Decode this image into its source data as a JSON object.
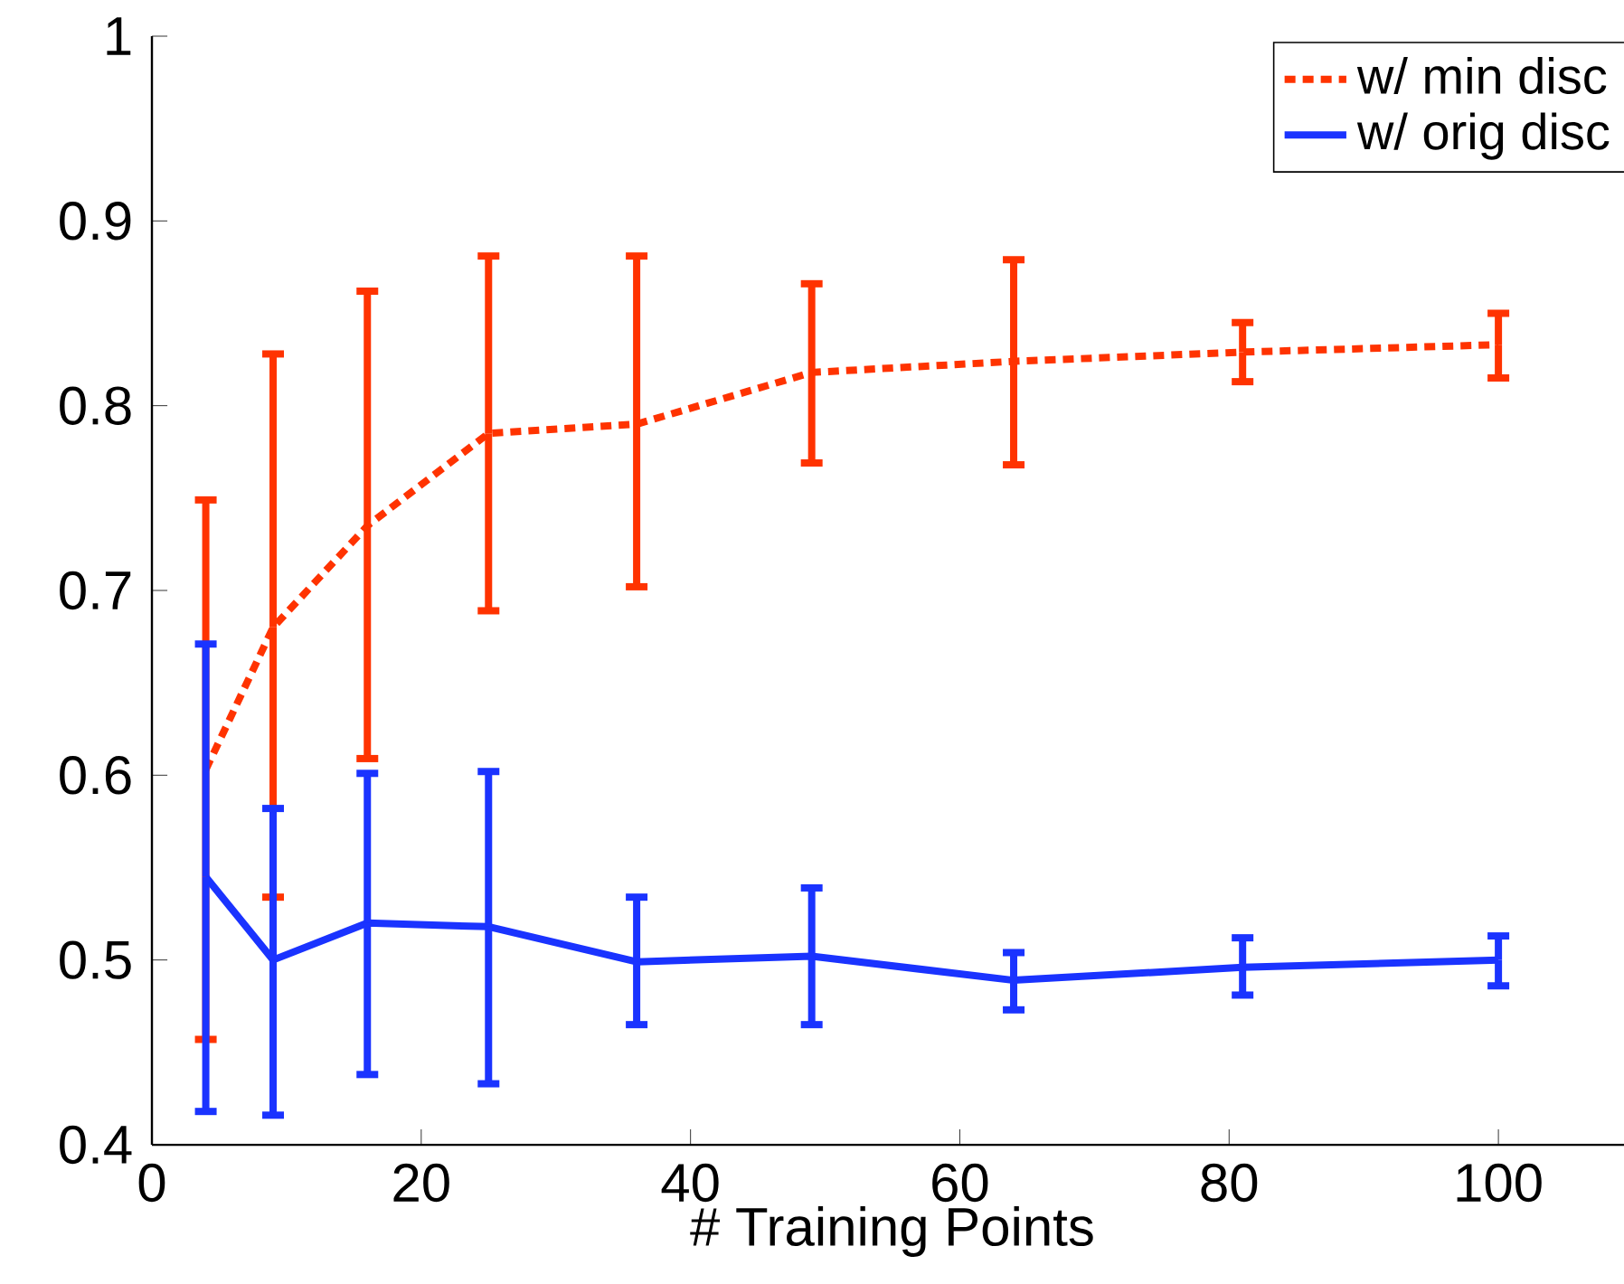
{
  "chart_data": {
    "type": "line",
    "xlabel": "# Training Points",
    "x": [
      4,
      9,
      16,
      25,
      36,
      49,
      64,
      81,
      100
    ],
    "series": [
      {
        "name": "w/ min disc",
        "color": "#ff3300",
        "line_style": "dotted",
        "values": [
          0.603,
          0.68,
          0.735,
          0.785,
          0.79,
          0.818,
          0.824,
          0.829,
          0.833
        ],
        "errors": [
          [
            0.457,
            0.749
          ],
          [
            0.534,
            0.828
          ],
          [
            0.609,
            0.862
          ],
          [
            0.689,
            0.881
          ],
          [
            0.702,
            0.881
          ],
          [
            0.769,
            0.866
          ],
          [
            0.768,
            0.879
          ],
          [
            0.813,
            0.845
          ],
          [
            0.815,
            0.85
          ]
        ]
      },
      {
        "name": "w/ orig disc",
        "color": "#1a33ff",
        "line_style": "solid",
        "values": [
          0.545,
          0.5,
          0.52,
          0.518,
          0.499,
          0.502,
          0.489,
          0.496,
          0.5
        ],
        "errors": [
          [
            0.418,
            0.671
          ],
          [
            0.416,
            0.582
          ],
          [
            0.438,
            0.601
          ],
          [
            0.433,
            0.602
          ],
          [
            0.465,
            0.534
          ],
          [
            0.465,
            0.539
          ],
          [
            0.473,
            0.504
          ],
          [
            0.481,
            0.512
          ],
          [
            0.486,
            0.513
          ]
        ]
      }
    ],
    "xlim": [
      0,
      110
    ],
    "ylim": [
      0.4,
      1
    ],
    "xticks": [
      0,
      20,
      40,
      60,
      80,
      100
    ],
    "yticks": [
      0.4,
      0.5,
      0.6,
      0.7,
      0.8,
      0.9,
      1
    ],
    "grid": false,
    "legend": "top right",
    "marker": "none"
  }
}
